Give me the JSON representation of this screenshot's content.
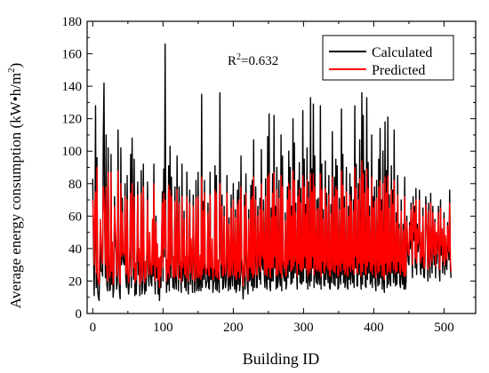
{
  "chart_data": {
    "type": "line",
    "title": "",
    "xlabel": "Building ID",
    "ylabel_main": "Average energy consumption (kW",
    "ylabel_bullet": "•",
    "ylabel_unit": "h/m",
    "ylabel_sup": "2",
    "ylabel_close": ")",
    "xlim": [
      -8,
      545
    ],
    "ylim": [
      0,
      180
    ],
    "xticks": [
      0,
      100,
      200,
      300,
      400,
      500
    ],
    "yticks": [
      0,
      20,
      40,
      60,
      80,
      100,
      120,
      140,
      160,
      180
    ],
    "annotation": {
      "text_main": "R",
      "text_sup": "2",
      "text_value": "=0.632"
    },
    "legend_position": "top-right",
    "series": [
      {
        "name": "Calculated",
        "color": "#000000",
        "x_start": 0,
        "x_step": 1,
        "values": [
          83,
          44,
          11,
          42,
          128,
          16,
          96,
          14,
          10,
          8,
          28,
          43,
          26,
          27,
          23,
          108,
          142,
          55,
          22,
          110,
          18,
          14,
          102,
          26,
          14,
          15,
          98,
          18,
          37,
          10,
          16,
          72,
          46,
          38,
          15,
          19,
          113,
          36,
          14,
          9,
          102,
          30,
          71,
          34,
          31,
          30,
          80,
          22,
          16,
          85,
          19,
          12,
          18,
          35,
          98,
          16,
          108,
          60,
          21,
          95,
          11,
          24,
          12,
          33,
          81,
          24,
          35,
          11,
          26,
          88,
          12,
          16,
          92,
          27,
          12,
          26,
          14,
          33,
          81,
          27,
          17,
          46,
          26,
          19,
          17,
          53,
          23,
          92,
          24,
          12,
          60,
          22,
          35,
          12,
          26,
          8,
          28,
          16,
          40,
          75,
          20,
          89,
          35,
          166,
          47,
          13,
          26,
          18,
          91,
          14,
          103,
          22,
          84,
          45,
          16,
          28,
          15,
          78,
          21,
          15,
          97,
          36,
          14,
          78,
          22,
          25,
          13,
          92,
          20,
          25,
          63,
          16,
          28,
          14,
          87,
          24,
          12,
          31,
          76,
          18,
          40,
          26,
          13,
          73,
          35,
          13,
          24,
          82,
          14,
          16,
          87,
          14,
          18,
          29,
          14,
          135,
          16,
          69,
          21,
          82,
          25,
          16,
          19,
          20,
          68,
          16,
          15,
          87,
          21,
          21,
          40,
          13,
          19,
          20,
          91,
          15,
          85,
          14,
          24,
          26,
          13,
          136,
          44,
          22,
          73,
          15,
          16,
          66,
          22,
          16,
          22,
          85,
          28,
          14,
          59,
          18,
          15,
          73,
          22,
          17,
          80,
          27,
          15,
          64,
          13,
          16,
          76,
          18,
          81,
          14,
          19,
          97,
          27,
          22,
          9,
          22,
          73,
          15,
          86,
          34,
          19,
          12,
          64,
          20,
          21,
          79,
          17,
          82,
          14,
          107,
          16,
          33,
          78,
          16,
          16,
          66,
          31,
          21,
          71,
          18,
          101,
          30,
          27,
          70,
          25,
          16,
          83,
          20,
          15,
          109,
          21,
          123,
          17,
          14,
          65,
          20,
          86,
          20,
          122,
          28,
          66,
          15,
          90,
          16,
          20,
          82,
          23,
          17,
          110,
          14,
          97,
          26,
          22,
          20,
          62,
          15,
          18,
          78,
          22,
          100,
          26,
          90,
          18,
          66,
          19,
          120,
          22,
          105,
          25,
          68,
          27,
          15,
          82,
          24,
          93,
          19,
          77,
          18,
          19,
          125,
          20,
          95,
          28,
          67,
          19,
          102,
          15,
          81,
          21,
          17,
          133,
          20,
          89,
          28,
          129,
          16,
          97,
          24,
          19,
          70,
          18,
          71,
          22,
          18,
          128,
          15,
          92,
          25,
          64,
          18,
          17,
          94,
          21,
          74,
          27,
          19,
          85,
          16,
          15,
          67,
          19,
          112,
          26,
          18,
          84,
          17,
          95,
          22,
          91,
          15,
          16,
          71,
          23,
          18,
          126,
          24,
          98,
          19,
          72,
          16,
          22,
          90,
          17,
          15,
          66,
          21,
          86,
          18,
          78,
          24,
          19,
          70,
          16,
          128,
          28,
          92,
          17,
          17,
          80,
          24,
          107,
          25,
          15,
          136,
          18,
          122,
          24,
          88,
          17,
          16,
          133,
          21,
          93,
          25,
          66,
          18,
          20,
          110,
          16,
          72,
          22,
          78,
          19,
          14,
          82,
          26,
          17,
          95,
          18,
          114,
          22,
          70,
          15,
          100,
          19,
          13,
          118,
          24,
          88,
          16,
          121,
          18,
          73,
          22,
          17,
          91,
          25,
          76,
          19,
          113,
          23,
          17,
          62,
          18,
          85,
          25,
          55,
          19,
          16,
          70,
          23,
          18,
          55,
          15,
          84,
          15,
          20,
          60,
          42,
          32,
          30,
          56,
          40,
          68,
          40,
          22,
          72,
          45,
          66,
          28,
          77,
          24,
          55,
          38,
          44,
          76,
          30,
          24,
          50,
          28,
          65,
          23,
          22,
          34,
          72,
          60,
          45,
          20,
          68,
          32,
          22,
          74,
          36,
          25,
          66,
          40,
          30,
          58,
          22,
          48,
          31,
          42,
          66,
          28,
          20,
          70,
          36,
          52,
          25,
          38,
          62,
          24,
          46,
          30,
          27,
          56,
          40,
          33,
          76,
          28,
          22
        ]
      },
      {
        "name": "Predicted",
        "color": "#ff0000",
        "x_start": 0,
        "x_step": 1,
        "values": [
          70,
          55,
          30,
          65,
          75,
          25,
          90,
          22,
          20,
          18,
          38,
          58,
          45,
          34,
          31,
          78,
          71,
          60,
          30,
          78,
          28,
          20,
          87,
          38,
          22,
          24,
          87,
          26,
          44,
          18,
          24,
          66,
          55,
          46,
          23,
          29,
          88,
          40,
          22,
          18,
          80,
          35,
          62,
          38,
          36,
          37,
          72,
          29,
          24,
          70,
          26,
          19,
          27,
          44,
          74,
          23,
          80,
          58,
          28,
          72,
          19,
          31,
          21,
          40,
          73,
          32,
          40,
          18,
          34,
          74,
          20,
          24,
          78,
          34,
          19,
          32,
          22,
          40,
          70,
          33,
          24,
          50,
          33,
          25,
          24,
          58,
          30,
          80,
          32,
          20,
          56,
          29,
          43,
          21,
          34,
          16,
          35,
          23,
          47,
          68,
          28,
          74,
          40,
          70,
          50,
          20,
          33,
          25,
          79,
          22,
          76,
          30,
          72,
          48,
          23,
          35,
          22,
          69,
          28,
          23,
          76,
          40,
          21,
          68,
          30,
          32,
          20,
          72,
          28,
          32,
          58,
          24,
          35,
          22,
          72,
          31,
          20,
          38,
          68,
          25,
          46,
          33,
          21,
          66,
          40,
          20,
          31,
          71,
          22,
          24,
          72,
          22,
          25,
          36,
          21,
          84,
          24,
          63,
          28,
          74,
          32,
          24,
          27,
          28,
          62,
          24,
          23,
          73,
          29,
          28,
          46,
          21,
          27,
          28,
          76,
          23,
          74,
          22,
          31,
          33,
          21,
          80,
          50,
          30,
          66,
          23,
          24,
          60,
          30,
          24,
          30,
          74,
          35,
          22,
          55,
          25,
          23,
          65,
          29,
          24,
          70,
          34,
          23,
          59,
          21,
          24,
          67,
          26,
          70,
          22,
          27,
          78,
          34,
          29,
          17,
          30,
          66,
          23,
          74,
          40,
          26,
          20,
          58,
          28,
          29,
          70,
          25,
          72,
          22,
          84,
          24,
          40,
          70,
          24,
          24,
          60,
          38,
          29,
          64,
          26,
          80,
          37,
          34,
          63,
          32,
          24,
          72,
          28,
          23,
          84,
          28,
          86,
          25,
          22,
          59,
          28,
          74,
          28,
          87,
          35,
          60,
          23,
          76,
          24,
          28,
          71,
          30,
          25,
          85,
          22,
          78,
          33,
          30,
          28,
          57,
          23,
          26,
          70,
          30,
          80,
          33,
          76,
          26,
          60,
          27,
          88,
          29,
          82,
          32,
          62,
          34,
          23,
          72,
          31,
          77,
          27,
          68,
          26,
          27,
          85,
          28,
          78,
          35,
          61,
          27,
          82,
          23,
          71,
          29,
          25,
          86,
          28,
          75,
          35,
          86,
          24,
          78,
          31,
          27,
          64,
          26,
          65,
          29,
          26,
          86,
          23,
          76,
          32,
          58,
          26,
          25,
          77,
          29,
          66,
          34,
          27,
          73,
          24,
          23,
          61,
          27,
          84,
          33,
          26,
          72,
          25,
          78,
          30,
          76,
          23,
          24,
          64,
          31,
          26,
          88,
          31,
          79,
          27,
          65,
          24,
          30,
          75,
          25,
          23,
          60,
          29,
          73,
          26,
          69,
          31,
          27,
          63,
          24,
          90,
          35,
          77,
          25,
          25,
          70,
          31,
          83,
          32,
          23,
          94,
          26,
          86,
          31,
          74,
          25,
          24,
          89,
          29,
          77,
          32,
          60,
          26,
          28,
          84,
          24,
          65,
          30,
          69,
          27,
          22,
          71,
          33,
          25,
          78,
          26,
          82,
          30,
          63,
          23,
          80,
          27,
          21,
          84,
          31,
          74,
          24,
          85,
          26,
          65,
          30,
          25,
          76,
          32,
          67,
          27,
          82,
          31,
          25,
          56,
          26,
          73,
          32,
          52,
          27,
          24,
          63,
          30,
          26,
          51,
          23,
          72,
          23,
          28,
          57,
          46,
          38,
          36,
          54,
          45,
          64,
          46,
          30,
          67,
          50,
          62,
          34,
          70,
          31,
          52,
          43,
          48,
          70,
          36,
          31,
          50,
          35,
          60,
          30,
          28,
          40,
          67,
          57,
          49,
          27,
          63,
          38,
          29,
          68,
          42,
          32,
          62,
          44,
          36,
          56,
          29,
          50,
          37,
          47,
          62,
          35,
          27,
          65,
          42,
          52,
          32,
          44,
          58,
          30,
          48,
          36,
          33,
          54,
          44,
          38,
          68,
          33,
          26
        ]
      }
    ]
  }
}
